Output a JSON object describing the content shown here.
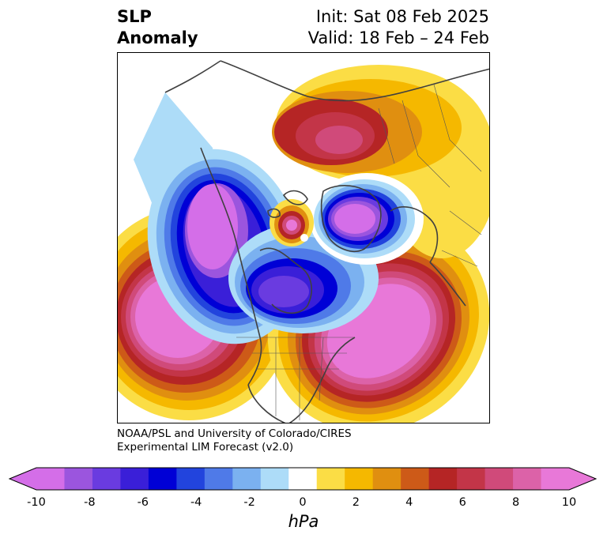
{
  "title": {
    "left_line1": "SLP",
    "left_line2": "Anomaly",
    "right_line1": "Init: Sat 08 Feb 2025",
    "right_line2": "Valid: 18 Feb – 24 Feb"
  },
  "credit": {
    "line1": "NOAA/PSL and University of Colorado/CIRES",
    "line2": "Experimental LIM Forecast (v2.0)"
  },
  "colorbar": {
    "unit": "hPa",
    "tick_labels": [
      "-10",
      "-8",
      "-6",
      "-4",
      "-2",
      "0",
      "2",
      "4",
      "6",
      "8",
      "10"
    ],
    "levels": [
      -10,
      -9,
      -8,
      -7,
      -6,
      -5,
      -4,
      -3,
      -2,
      -1,
      1,
      2,
      3,
      4,
      5,
      6,
      7,
      8,
      9,
      10
    ],
    "colors": [
      "#d46ee8",
      "#9b55de",
      "#6a3be0",
      "#3a1fd8",
      "#0000d6",
      "#2244dd",
      "#4f7ae8",
      "#7bb1f0",
      "#addcf8",
      "#ffffff",
      "#fbdd45",
      "#f5b800",
      "#e08f10",
      "#cd5a18",
      "#b52525",
      "#c33548",
      "#d04a7a",
      "#dc62a8",
      "#e878d8"
    ],
    "extend_low_color": "#d46ee8",
    "extend_high_color": "#e878d8"
  },
  "map": {
    "projection": "north-polar-stereographic",
    "features": [
      {
        "name": "Aleutian low anomaly",
        "sign": "negative",
        "min_hPa": -10
      },
      {
        "name": "Northeast Pacific high anomaly",
        "sign": "positive",
        "max_hPa": 10
      },
      {
        "name": "Arctic Canada low anomaly",
        "sign": "negative",
        "min_hPa": -7
      },
      {
        "name": "North Atlantic high anomaly",
        "sign": "positive",
        "max_hPa": 10
      },
      {
        "name": "Scandinavia low anomaly",
        "sign": "negative",
        "min_hPa": -10
      },
      {
        "name": "Siberia high anomaly",
        "sign": "positive",
        "max_hPa": 8
      },
      {
        "name": "Barents Sea high anomaly",
        "sign": "positive",
        "max_hPa": 9
      }
    ]
  }
}
